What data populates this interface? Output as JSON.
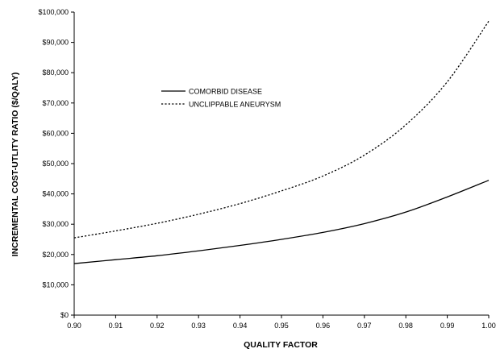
{
  "chart_data": {
    "type": "line",
    "title": "",
    "xlabel": "QUALITY FACTOR",
    "ylabel": "INCREMENTAL COST-UTLITY RATIO ($/QALY)",
    "xlim": [
      0.9,
      1.0
    ],
    "ylim": [
      0,
      100000
    ],
    "x_ticks": [
      0.9,
      0.91,
      0.92,
      0.93,
      0.94,
      0.95,
      0.96,
      0.97,
      0.98,
      0.99,
      1.0
    ],
    "x_tick_labels": [
      "0.90",
      "0.91",
      "0.92",
      "0.93",
      "0.94",
      "0.95",
      "0.96",
      "0.97",
      "0.98",
      "0.99",
      "1.00"
    ],
    "y_ticks": [
      0,
      10000,
      20000,
      30000,
      40000,
      50000,
      60000,
      70000,
      80000,
      90000,
      100000
    ],
    "y_tick_labels": [
      "$0",
      "$10,000",
      "$20,000",
      "$30,000",
      "$40,000",
      "$50,000",
      "$60,000",
      "$70,000",
      "$80,000",
      "$90,000",
      "$100,000"
    ],
    "grid": false,
    "legend_position": "upper-left",
    "series": [
      {
        "name": "COMORBID DISEASE",
        "style": "solid",
        "color": "#000000",
        "x": [
          0.9,
          0.91,
          0.92,
          0.93,
          0.94,
          0.95,
          0.96,
          0.97,
          0.98,
          0.99,
          1.0
        ],
        "values": [
          17000,
          18300,
          19600,
          21200,
          23000,
          25000,
          27300,
          30200,
          34000,
          39000,
          44500
        ]
      },
      {
        "name": "UNCLIPPABLE ANEURYSM",
        "style": "dotted",
        "color": "#000000",
        "x": [
          0.9,
          0.91,
          0.92,
          0.93,
          0.94,
          0.95,
          0.96,
          0.97,
          0.98,
          0.99,
          1.0
        ],
        "values": [
          25500,
          27800,
          30300,
          33300,
          36800,
          41000,
          45900,
          52800,
          62800,
          77000,
          97000
        ]
      }
    ]
  }
}
